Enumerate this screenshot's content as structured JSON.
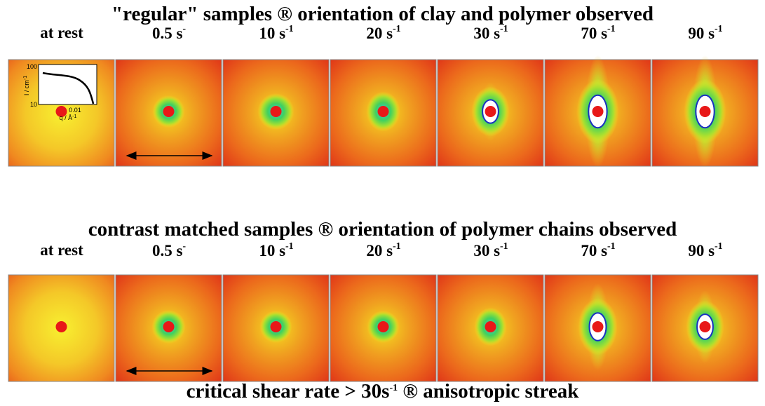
{
  "rows": [
    {
      "title": "\"regular\" samples ® orientation of clay and polymer observed",
      "labels": [
        {
          "text": "at rest"
        },
        {
          "text": "0.5 s",
          "sup": "-"
        },
        {
          "text": "10 s",
          "sup": "-1"
        },
        {
          "text": "20 s",
          "sup": "-1"
        },
        {
          "text": "30 s",
          "sup": "-1"
        },
        {
          "text": "70 s",
          "sup": "-1"
        },
        {
          "text": "90 s",
          "sup": "-1"
        }
      ]
    },
    {
      "title": "contrast matched samples ® orientation of polymer chains observed",
      "labels": [
        {
          "text": "at rest"
        },
        {
          "text": "0.5 s",
          "sup": "-"
        },
        {
          "text": "10 s",
          "sup": "-1"
        },
        {
          "text": "20 s",
          "sup": "-1"
        },
        {
          "text": "30 s",
          "sup": "-1"
        },
        {
          "text": "70 s",
          "sup": "-1"
        },
        {
          "text": "90 s",
          "sup": "-1"
        }
      ]
    }
  ],
  "inset": {
    "y_label": "I / cm",
    "y_label_sup": "-1",
    "x_label": "q / Å",
    "x_label_sup": "-1",
    "yticks": [
      "100",
      "10"
    ],
    "xticks": [
      "0.01"
    ]
  },
  "footer": {
    "text": "critical shear rate > 30s",
    "sup": "-1",
    "rest": " ® anisotropic streak"
  }
}
